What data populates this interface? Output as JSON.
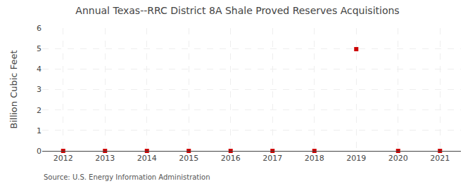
{
  "chart_data": {
    "type": "scatter",
    "title": "Annual Texas--RRC District 8A Shale Proved Reserves Acquisitions",
    "ylabel": "Billion Cubic Feet",
    "annotations": [
      "Source: U.S. Energy Information Administration"
    ],
    "x": [
      2012,
      2013,
      2014,
      2015,
      2016,
      2017,
      2018,
      2019,
      2020,
      2021
    ],
    "values": [
      0.0,
      0.0,
      0.0,
      0.0,
      0.0,
      0.0,
      0.0,
      4.97,
      0.0,
      0.0
    ],
    "color": "#cc0000",
    "marker": "square",
    "xlim": [
      2011.5,
      2021.5
    ],
    "xticks": [
      2012,
      2013,
      2014,
      2015,
      2016,
      2017,
      2018,
      2019,
      2020,
      2021
    ],
    "ylim": [
      0,
      6
    ],
    "yticks": [
      0,
      1,
      2,
      3,
      4,
      5,
      6
    ],
    "grid": true
  }
}
